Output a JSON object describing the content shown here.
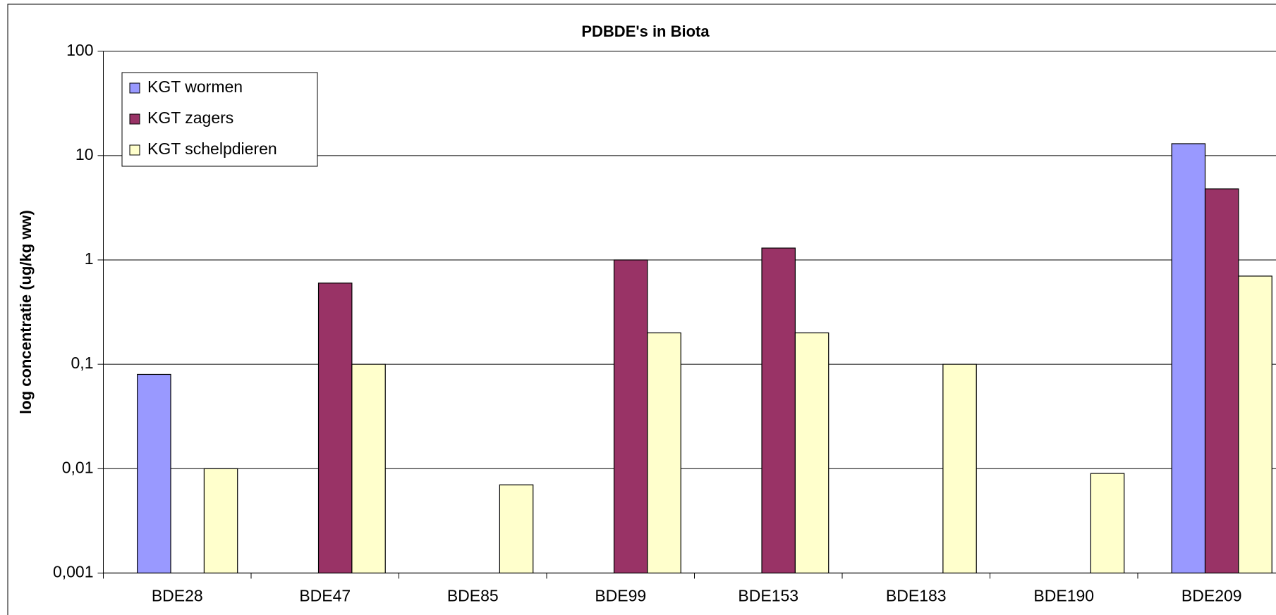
{
  "chart_data": {
    "type": "bar",
    "title": "PDBDE's in Biota",
    "ylabel": "log concentratie (ug/kg ww)",
    "categories": [
      "BDE28",
      "BDE47",
      "BDE85",
      "BDE99",
      "BDE153",
      "BDE183",
      "BDE190",
      "BDE209"
    ],
    "series": [
      {
        "name": "KGT wormen",
        "color": "#9999ff",
        "values": [
          0.08,
          null,
          null,
          null,
          null,
          null,
          null,
          13
        ]
      },
      {
        "name": "KGT zagers",
        "color": "#993366",
        "values": [
          null,
          0.6,
          null,
          1,
          1.3,
          null,
          null,
          4.8
        ]
      },
      {
        "name": "KGT schelpdieren",
        "color": "#ffffcc",
        "values": [
          0.01,
          0.1,
          0.007,
          0.2,
          0.2,
          0.1,
          0.009,
          0.7
        ]
      }
    ],
    "ylim": [
      0.001,
      100
    ],
    "yticks": [
      {
        "value": 0.001,
        "label": "0,001"
      },
      {
        "value": 0.01,
        "label": "0,01"
      },
      {
        "value": 0.1,
        "label": "0,1"
      },
      1,
      10,
      100
    ],
    "log_y": true,
    "grid": true,
    "legend": "upper left"
  }
}
